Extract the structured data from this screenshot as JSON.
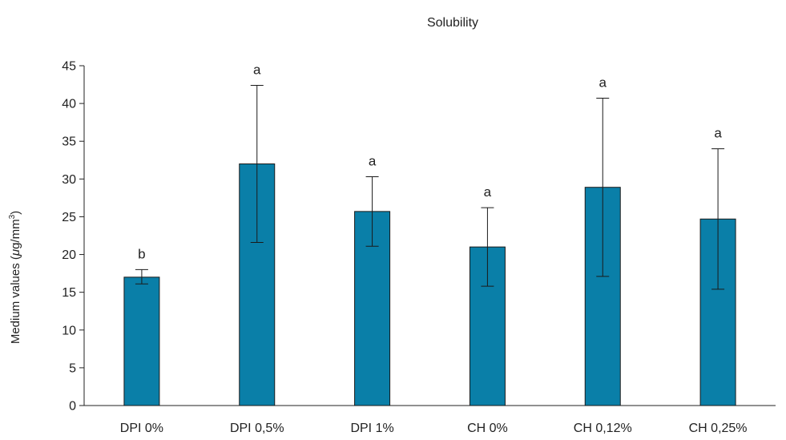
{
  "chart_data": {
    "type": "bar",
    "title": "Solubility",
    "ylabel": "Medium values  (μg/mm³)",
    "ylabel_parts": {
      "mu": "μ",
      "main": "g/mm",
      "sup": "3",
      "open": "Medium values  (",
      "close": ")"
    },
    "xlabel": "",
    "categories": [
      "DPI 0%",
      "DPI 0,5%",
      "DPI 1%",
      "CH 0%",
      "CH 0,12%",
      "CH 0,25%"
    ],
    "values": [
      17.0,
      32.0,
      25.7,
      21.0,
      28.9,
      24.7
    ],
    "error_low": [
      16.1,
      21.6,
      21.1,
      15.8,
      17.1,
      15.4
    ],
    "error_high": [
      18.0,
      42.4,
      30.3,
      26.2,
      40.7,
      34.0
    ],
    "significance": [
      "b",
      "a",
      "a",
      "a",
      "a",
      "a"
    ],
    "ylim": [
      0,
      45
    ],
    "yticks": [
      0,
      5,
      10,
      15,
      20,
      25,
      30,
      35,
      40,
      45
    ],
    "grid": false,
    "legend": "none",
    "colors": {
      "bar_fill": "#0a7fa8",
      "bar_stroke": "#1a1a1a",
      "axis": "#222222"
    }
  }
}
